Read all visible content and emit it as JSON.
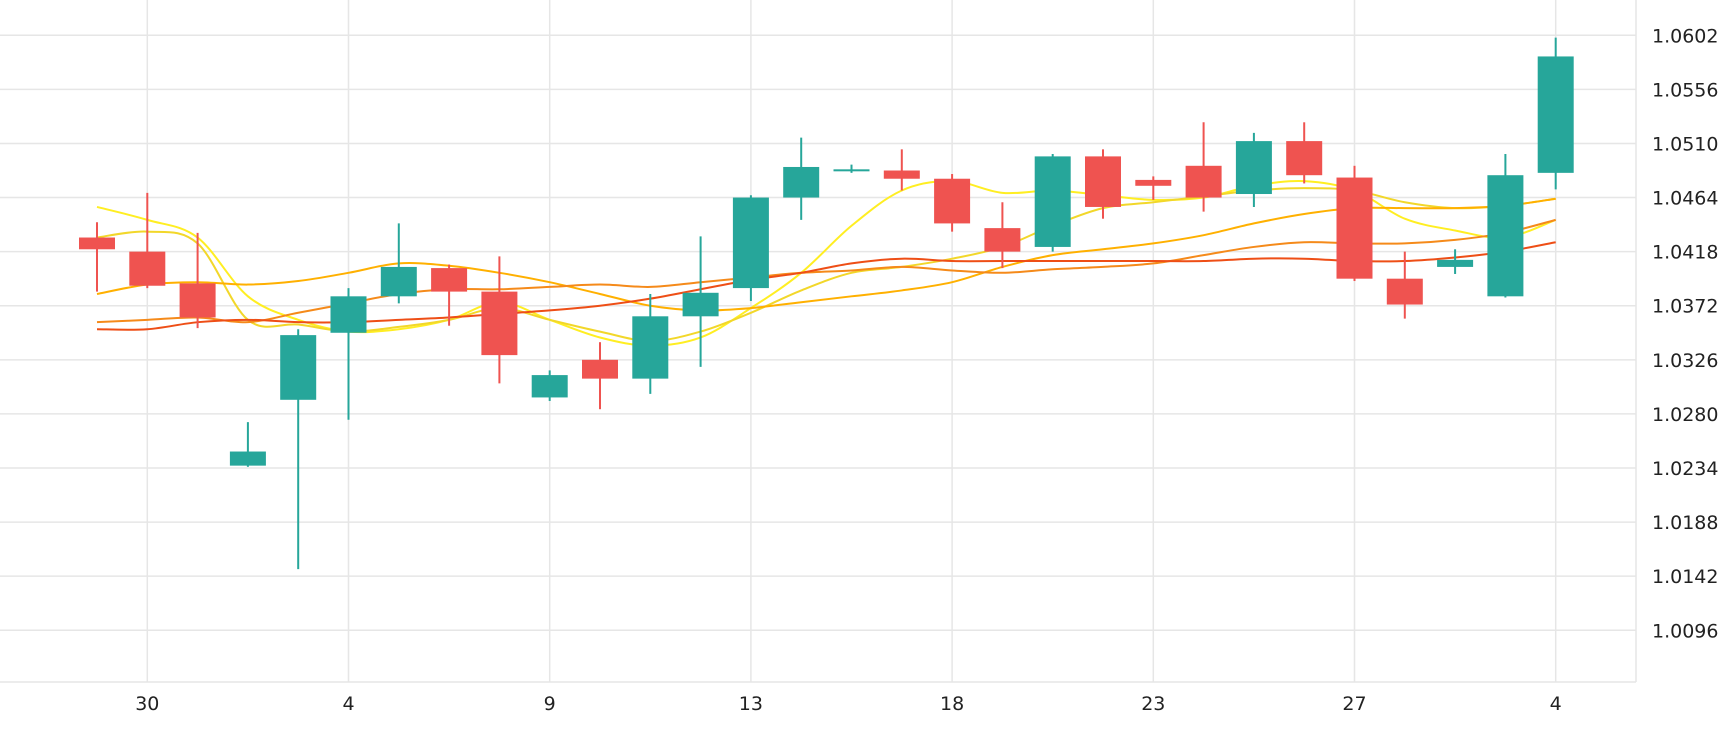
{
  "chart_data": {
    "type": "candlestick",
    "title": "",
    "xlabel": "",
    "ylabel": "",
    "x_tick_labels": [
      "30",
      "4",
      "9",
      "13",
      "18",
      "23",
      "27",
      "4"
    ],
    "y_tick_labels": [
      "1.0602",
      "1.0556",
      "1.0510",
      "1.0464",
      "1.0418",
      "1.0372",
      "1.0326",
      "1.0280",
      "1.0234",
      "1.0188",
      "1.0142",
      "1.0096"
    ],
    "ylim": [
      1.0052,
      1.0632
    ],
    "grid": true,
    "colors": {
      "up": "#26a69a",
      "down": "#ef5350",
      "grid": "#e6e6e6"
    },
    "candles": [
      {
        "o": 1.043,
        "h": 1.0443,
        "l": 1.0384,
        "c": 1.042
      },
      {
        "o": 1.0418,
        "h": 1.0468,
        "l": 1.0387,
        "c": 1.0389
      },
      {
        "o": 1.0391,
        "h": 1.0434,
        "l": 1.0353,
        "c": 1.0362
      },
      {
        "o": 1.0236,
        "h": 1.0273,
        "l": 1.0235,
        "c": 1.0248
      },
      {
        "o": 1.0292,
        "h": 1.0352,
        "l": 1.0148,
        "c": 1.0347
      },
      {
        "o": 1.0349,
        "h": 1.0387,
        "l": 1.0275,
        "c": 1.038
      },
      {
        "o": 1.038,
        "h": 1.0442,
        "l": 1.0374,
        "c": 1.0405
      },
      {
        "o": 1.0404,
        "h": 1.0407,
        "l": 1.0355,
        "c": 1.0384
      },
      {
        "o": 1.0384,
        "h": 1.0414,
        "l": 1.0306,
        "c": 1.033
      },
      {
        "o": 1.0294,
        "h": 1.0317,
        "l": 1.0291,
        "c": 1.0313
      },
      {
        "o": 1.0326,
        "h": 1.0341,
        "l": 1.0284,
        "c": 1.031
      },
      {
        "o": 1.031,
        "h": 1.0382,
        "l": 1.0297,
        "c": 1.0363
      },
      {
        "o": 1.0363,
        "h": 1.0431,
        "l": 1.032,
        "c": 1.0383
      },
      {
        "o": 1.0387,
        "h": 1.0466,
        "l": 1.0376,
        "c": 1.0464
      },
      {
        "o": 1.0464,
        "h": 1.0515,
        "l": 1.0445,
        "c": 1.049
      },
      {
        "o": 1.0487,
        "h": 1.0492,
        "l": 1.0485,
        "c": 1.0488
      },
      {
        "o": 1.0487,
        "h": 1.0505,
        "l": 1.047,
        "c": 1.048
      },
      {
        "o": 1.048,
        "h": 1.0484,
        "l": 1.0435,
        "c": 1.0442
      },
      {
        "o": 1.0438,
        "h": 1.046,
        "l": 1.0404,
        "c": 1.0418
      },
      {
        "o": 1.0422,
        "h": 1.0501,
        "l": 1.0418,
        "c": 1.0499
      },
      {
        "o": 1.0499,
        "h": 1.0505,
        "l": 1.0446,
        "c": 1.0456
      },
      {
        "o": 1.0479,
        "h": 1.0482,
        "l": 1.0462,
        "c": 1.0474
      },
      {
        "o": 1.0491,
        "h": 1.0528,
        "l": 1.0452,
        "c": 1.0464
      },
      {
        "o": 1.0467,
        "h": 1.0519,
        "l": 1.0456,
        "c": 1.0512
      },
      {
        "o": 1.0512,
        "h": 1.0528,
        "l": 1.0476,
        "c": 1.0483
      },
      {
        "o": 1.0481,
        "h": 1.0491,
        "l": 1.0393,
        "c": 1.0395
      },
      {
        "o": 1.0395,
        "h": 1.0418,
        "l": 1.0361,
        "c": 1.0373
      },
      {
        "o": 1.0405,
        "h": 1.042,
        "l": 1.0399,
        "c": 1.0411
      },
      {
        "o": 1.038,
        "h": 1.0501,
        "l": 1.0379,
        "c": 1.0483
      },
      {
        "o": 1.0485,
        "h": 1.06,
        "l": 1.0471,
        "c": 1.0584
      }
    ],
    "series": [
      {
        "color": "#ffee22",
        "values": [
          1.0456,
          1.0445,
          1.043,
          1.038,
          1.036,
          1.035,
          1.0352,
          1.036,
          1.0375,
          1.036,
          1.0345,
          1.0338,
          1.0345,
          1.037,
          1.04,
          1.044,
          1.047,
          1.0478,
          1.0468,
          1.047,
          1.0466,
          1.0462,
          1.0464,
          1.0474,
          1.0478,
          1.047,
          1.0446,
          1.0436,
          1.043,
          1.0445
        ]
      },
      {
        "color": "#f2d72a",
        "values": [
          1.043,
          1.0435,
          1.0425,
          1.036,
          1.0356,
          1.035,
          1.0354,
          1.036,
          1.037,
          1.036,
          1.035,
          1.0342,
          1.035,
          1.0366,
          1.0385,
          1.04,
          1.0405,
          1.0412,
          1.0422,
          1.044,
          1.0455,
          1.046,
          1.0465,
          1.047,
          1.0472,
          1.047,
          1.046,
          1.0455,
          1.0457,
          1.0463
        ]
      },
      {
        "color": "#ffb000",
        "values": [
          1.0382,
          1.039,
          1.0392,
          1.039,
          1.0393,
          1.04,
          1.0408,
          1.0406,
          1.04,
          1.0392,
          1.0382,
          1.0372,
          1.0368,
          1.037,
          1.0375,
          1.038,
          1.0385,
          1.0392,
          1.0405,
          1.0415,
          1.042,
          1.0425,
          1.0432,
          1.0442,
          1.045,
          1.0455,
          1.0455,
          1.0455,
          1.0457,
          1.0463
        ]
      },
      {
        "color": "#f58a1a",
        "values": [
          1.0358,
          1.036,
          1.0362,
          1.0358,
          1.0366,
          1.0374,
          1.0382,
          1.0386,
          1.0386,
          1.0388,
          1.039,
          1.0388,
          1.0392,
          1.0396,
          1.04,
          1.0402,
          1.0405,
          1.0402,
          1.04,
          1.0403,
          1.0405,
          1.0408,
          1.0415,
          1.0422,
          1.0426,
          1.0425,
          1.0425,
          1.0428,
          1.0434,
          1.0445
        ]
      },
      {
        "color": "#ee4e16",
        "values": [
          1.0352,
          1.0352,
          1.0358,
          1.036,
          1.0358,
          1.0358,
          1.036,
          1.0362,
          1.0365,
          1.0368,
          1.0372,
          1.0378,
          1.0386,
          1.0394,
          1.04,
          1.0408,
          1.0412,
          1.041,
          1.041,
          1.041,
          1.041,
          1.041,
          1.041,
          1.0412,
          1.0412,
          1.041,
          1.041,
          1.0413,
          1.0418,
          1.0426
        ]
      }
    ]
  }
}
